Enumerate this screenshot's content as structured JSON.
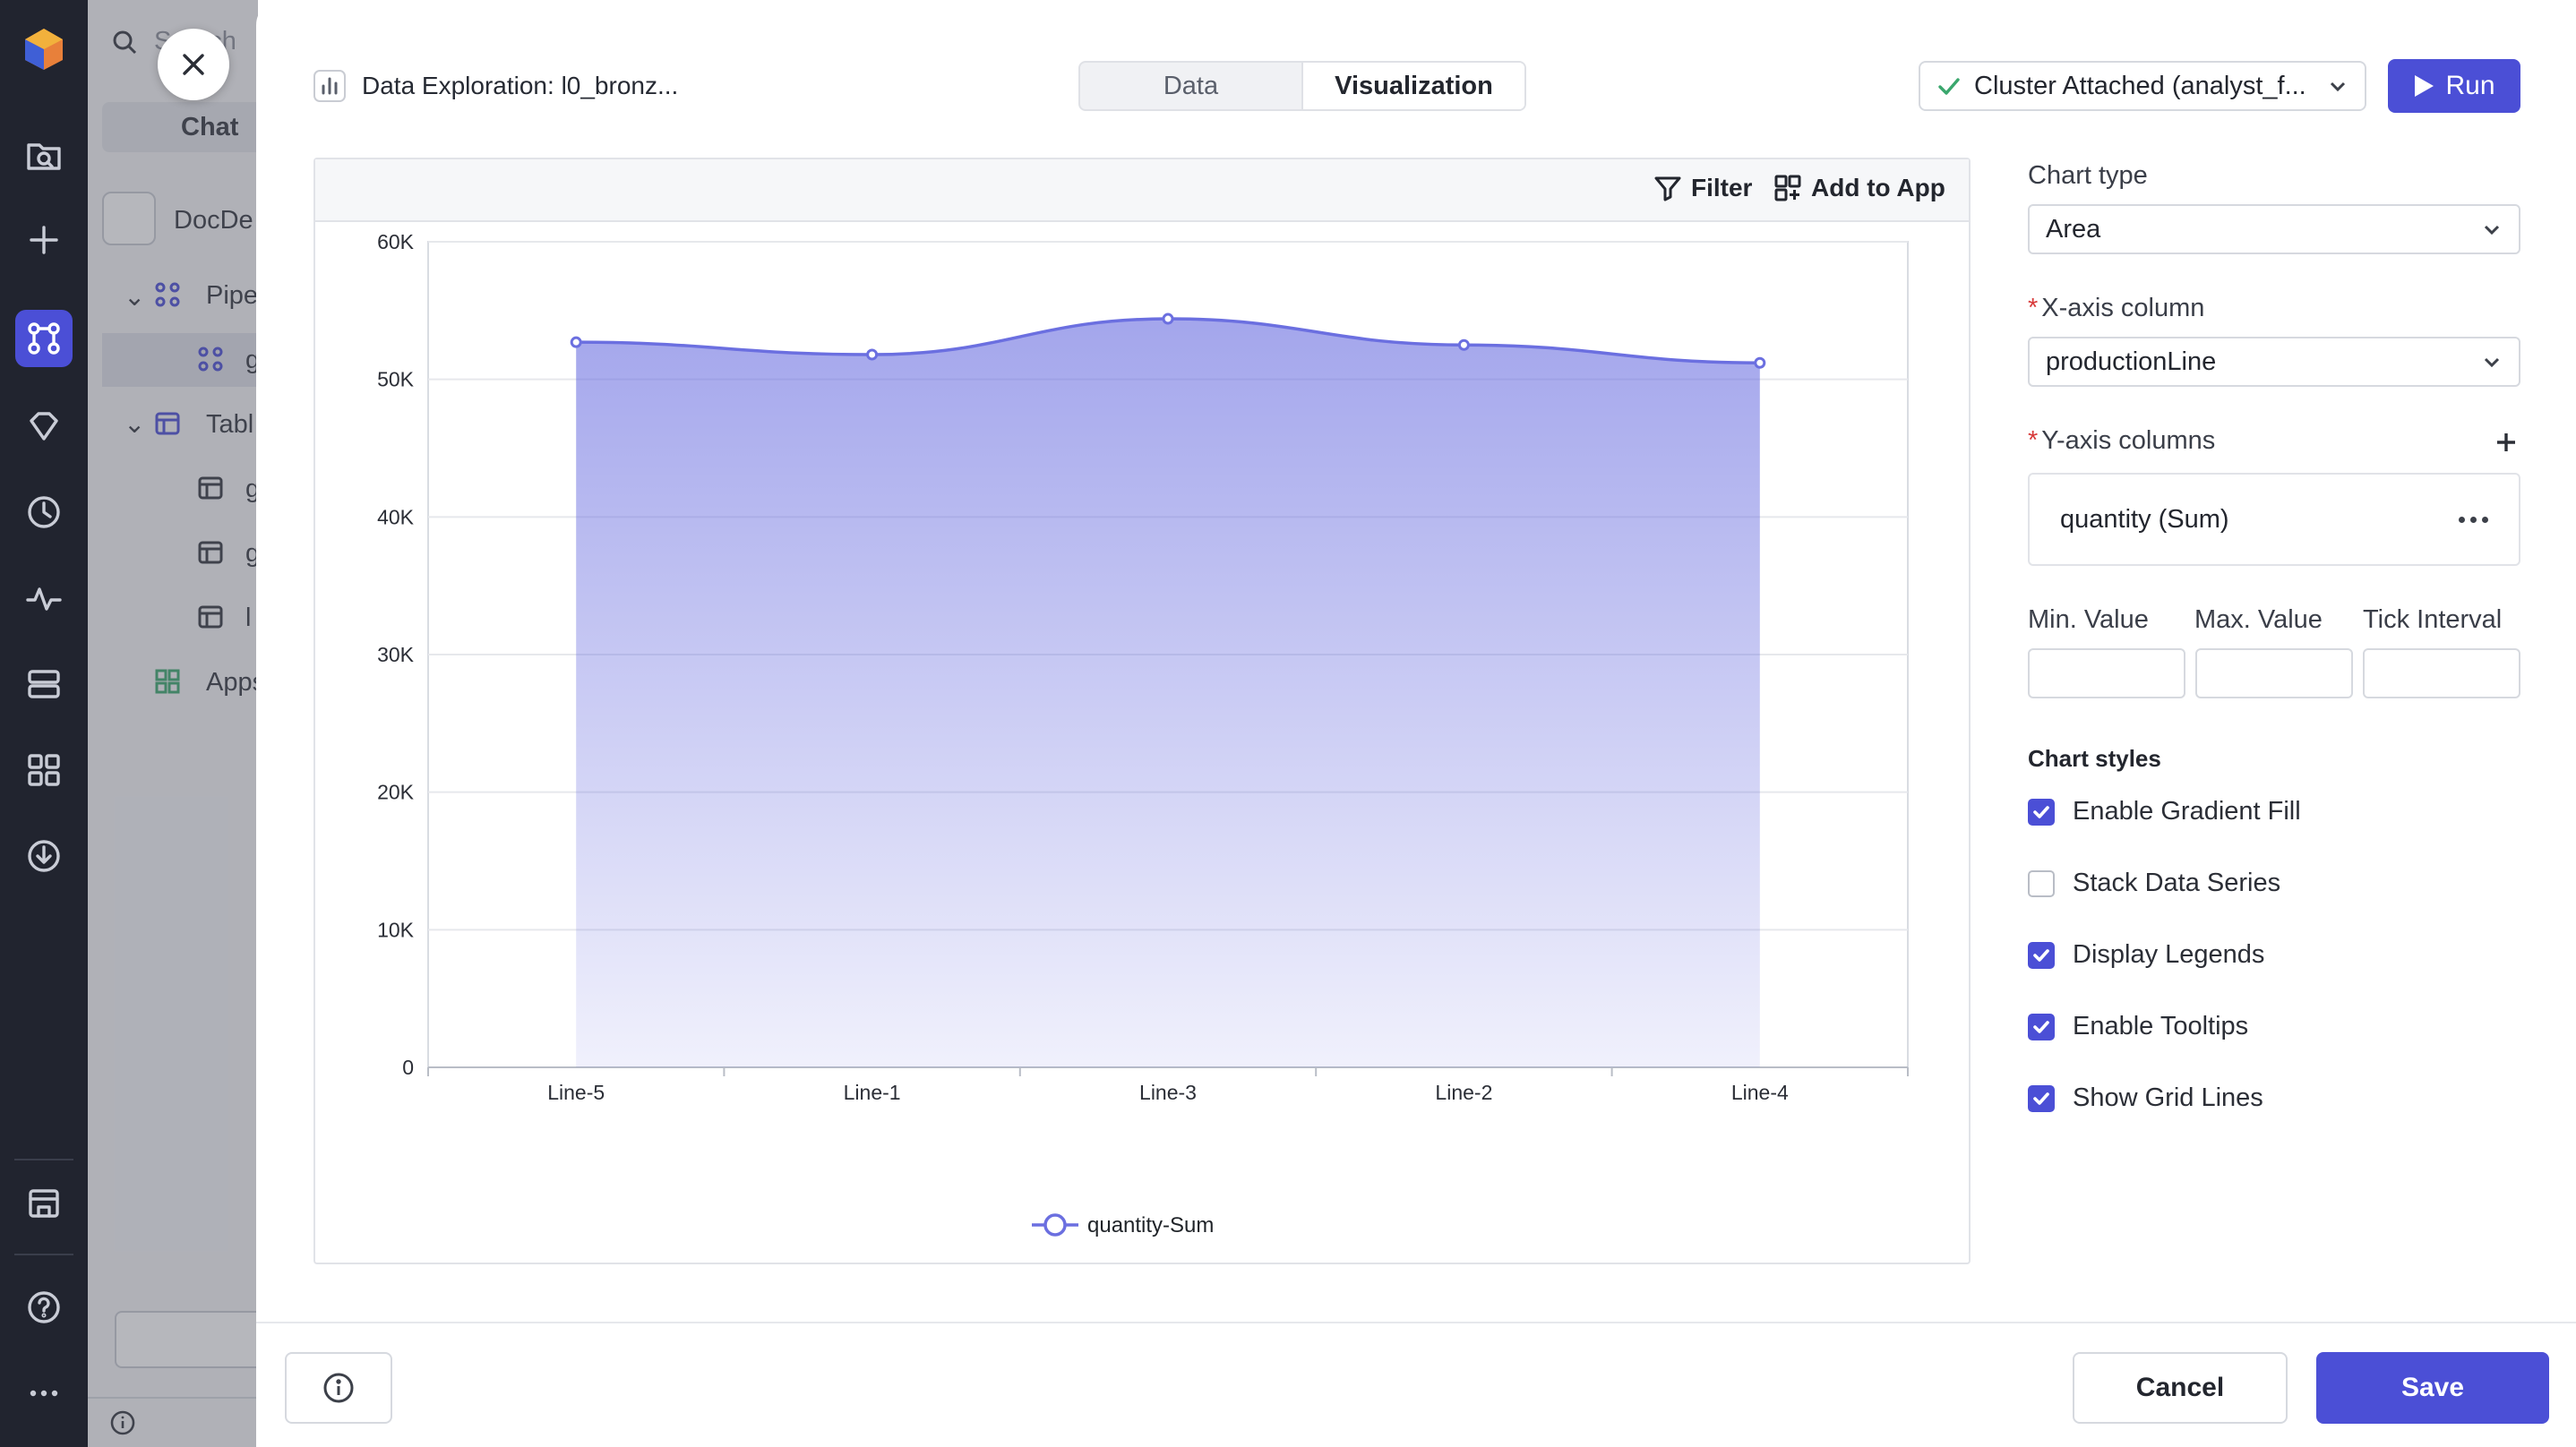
{
  "background_panel": {
    "search_placeholder": "Search",
    "chat_label": "Chat",
    "project_name": "DocDe",
    "tree": [
      {
        "label": "Pipe",
        "icon": "pipeline-icon"
      },
      {
        "label": "g",
        "icon": "pipeline-icon"
      },
      {
        "label": "Tabl",
        "icon": "table-icon"
      },
      {
        "label": "g",
        "icon": "table-icon"
      },
      {
        "label": "g",
        "icon": "table-icon"
      },
      {
        "label": "l",
        "icon": "table-icon"
      },
      {
        "label": "Apps",
        "icon": "apps-icon"
      }
    ]
  },
  "header": {
    "title": "Data Exploration: l0_bronz...",
    "tabs": [
      {
        "label": "Data",
        "active": false
      },
      {
        "label": "Visualization",
        "active": true
      }
    ],
    "cluster_label": "Cluster Attached (analyst_f...",
    "run_label": "Run"
  },
  "toolbar": {
    "filter_label": "Filter",
    "add_to_app_label": "Add to App"
  },
  "chart_data": {
    "type": "area",
    "categories": [
      "Line-5",
      "Line-1",
      "Line-3",
      "Line-2",
      "Line-4"
    ],
    "series": [
      {
        "name": "quantity-Sum",
        "values": [
          52700,
          51800,
          54400,
          52500,
          51200
        ],
        "color": "#6b6fe0"
      }
    ],
    "ylim": [
      0,
      60000
    ],
    "yticks": [
      0,
      10000,
      20000,
      30000,
      40000,
      50000,
      60000
    ],
    "ytick_labels": [
      "0",
      "10K",
      "20K",
      "30K",
      "40K",
      "50K",
      "60K"
    ],
    "grid": true,
    "legend": "bottom-center",
    "gradient_fill": true
  },
  "config": {
    "chart_type_label": "Chart type",
    "chart_type_value": "Area",
    "x_axis_label": "X-axis column",
    "x_axis_value": "productionLine",
    "y_axis_label": "Y-axis columns",
    "y_axis_value": "quantity (Sum)",
    "min_label": "Min. Value",
    "max_label": "Max. Value",
    "tick_label": "Tick Interval",
    "min_value": "",
    "max_value": "",
    "tick_value": "",
    "styles_title": "Chart styles",
    "styles": [
      {
        "label": "Enable Gradient Fill",
        "checked": true
      },
      {
        "label": "Stack Data Series",
        "checked": false
      },
      {
        "label": "Display Legends",
        "checked": true
      },
      {
        "label": "Enable Tooltips",
        "checked": true
      },
      {
        "label": "Show Grid Lines",
        "checked": true
      }
    ]
  },
  "footer": {
    "cancel_label": "Cancel",
    "save_label": "Save"
  },
  "colors": {
    "accent": "#4b4fd6",
    "rail_bg": "#21242f",
    "success": "#3aa76d"
  }
}
